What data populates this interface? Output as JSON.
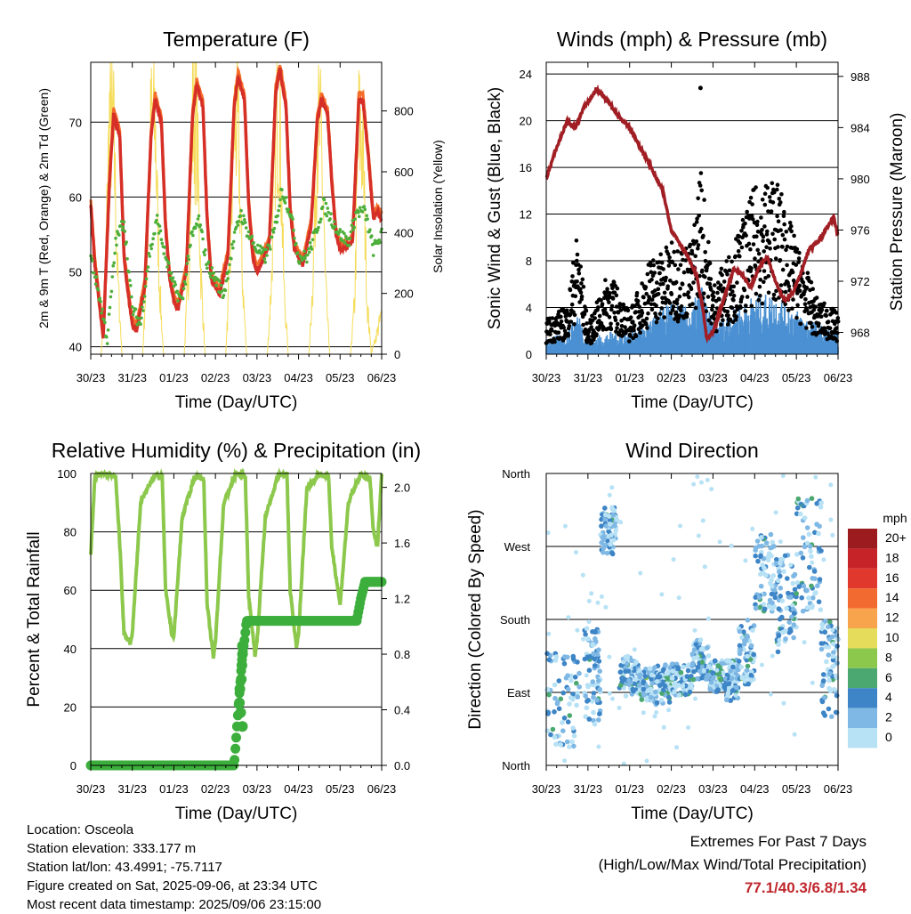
{
  "colors": {
    "temp_2m": "#d62f27",
    "temp_9m": "#f46d2a",
    "dewpoint": "#4daf3a",
    "solar": "#f5dc5a",
    "wind": "#000000",
    "gust": "#4a90d2",
    "pressure": "#a01e24",
    "rh": "#8cc84b",
    "precip": "#3cae3c",
    "extremes_values": "#c0272d"
  },
  "x_ticks": [
    "30/23",
    "31/23",
    "01/23",
    "02/23",
    "03/23",
    "04/23",
    "05/23",
    "06/23"
  ],
  "chart_data": [
    {
      "type": "line",
      "title": "Temperature (F)",
      "xlabel": "Time (Day/UTC)",
      "ylabel": "2m & 9m T (Red, Orange) & 2m Td (Green)",
      "y2label": "Solar Insolation (Yellow)",
      "ylim": [
        39,
        78
      ],
      "y2lim": [
        0,
        960
      ],
      "yticks": [
        40,
        50,
        60,
        70
      ],
      "y2ticks": [
        0,
        200,
        400,
        600,
        800
      ],
      "series": [
        {
          "name": "2m T",
          "x": [
            0,
            0.1,
            0.3,
            0.45,
            0.55,
            0.7,
            0.8,
            0.9,
            1,
            1.1,
            1.3,
            1.45,
            1.55,
            1.7,
            1.8,
            1.9,
            2,
            2.1,
            2.3,
            2.45,
            2.55,
            2.7,
            2.8,
            2.9,
            3,
            3.1,
            3.3,
            3.45,
            3.55,
            3.7,
            3.8,
            3.9,
            4,
            4.1,
            4.3,
            4.45,
            4.55,
            4.7,
            4.8,
            4.9,
            5,
            5.1,
            5.3,
            5.45,
            5.55,
            5.7,
            5.8,
            5.9,
            6,
            6.1,
            6.3,
            6.45,
            6.55,
            6.7,
            6.8,
            6.9,
            7
          ],
          "values": [
            59,
            51,
            41,
            62,
            71,
            68,
            52,
            47,
            43,
            42,
            48,
            68,
            73,
            70,
            56,
            49,
            46,
            45,
            50,
            71,
            75,
            72,
            57,
            49,
            48,
            47,
            52,
            72,
            76,
            73,
            59,
            52,
            50,
            51,
            54,
            74,
            77,
            72,
            58,
            53,
            52,
            51,
            56,
            70,
            73,
            71,
            62,
            55,
            53,
            53,
            54,
            73,
            73,
            64,
            57,
            58,
            57
          ]
        },
        {
          "name": "Td",
          "x": [
            0,
            0.2,
            0.4,
            0.6,
            0.8,
            1,
            1.2,
            1.4,
            1.6,
            1.8,
            2,
            2.2,
            2.4,
            2.6,
            2.8,
            3,
            3.2,
            3.4,
            3.6,
            3.8,
            4,
            4.2,
            4.4,
            4.6,
            4.8,
            5,
            5.2,
            5.4,
            5.6,
            5.8,
            6,
            6.2,
            6.4,
            6.6,
            6.8,
            7
          ],
          "values": [
            52,
            47,
            41,
            54,
            57,
            45,
            43,
            52,
            57,
            52,
            48,
            46,
            54,
            57,
            51,
            49,
            47,
            53,
            58,
            55,
            53,
            52,
            55,
            61,
            58,
            52,
            52,
            55,
            59,
            57,
            55,
            54,
            58,
            58,
            53,
            55
          ]
        },
        {
          "name": "Solar",
          "x": [
            0,
            0.25,
            0.35,
            0.45,
            0.55,
            0.65,
            0.75,
            1,
            1.25,
            1.35,
            1.45,
            1.55,
            1.65,
            1.75,
            2,
            2.25,
            2.35,
            2.45,
            2.55,
            2.65,
            2.75,
            3,
            3.25,
            3.35,
            3.45,
            3.55,
            3.65,
            3.75,
            4,
            4.25,
            4.35,
            4.45,
            4.55,
            4.65,
            4.75,
            5,
            5.25,
            5.35,
            5.45,
            5.55,
            5.65,
            5.75,
            6,
            6.25,
            6.35,
            6.45,
            6.55,
            6.65,
            6.75,
            7
          ],
          "values": [
            0,
            0,
            300,
            900,
            850,
            300,
            0,
            0,
            0,
            350,
            880,
            900,
            280,
            0,
            0,
            0,
            320,
            920,
            870,
            310,
            0,
            0,
            0,
            330,
            900,
            850,
            290,
            0,
            0,
            0,
            280,
            900,
            880,
            250,
            0,
            0,
            0,
            300,
            880,
            820,
            260,
            0,
            0,
            0,
            200,
            870,
            800,
            200,
            0,
            150
          ]
        }
      ]
    },
    {
      "type": "scatter",
      "title": "Winds (mph) & Pressure (mb)",
      "xlabel": "Time (Day/UTC)",
      "ylabel": "Sonic Wind & Gust (Blue, Black)",
      "y2label": "Station Pressure (Maroon)",
      "ylim": [
        0,
        25
      ],
      "y2lim": [
        966.3,
        989.1
      ],
      "yticks": [
        0,
        4,
        8,
        12,
        16,
        20,
        24
      ],
      "y2ticks": [
        968,
        972,
        976,
        980,
        984,
        988
      ],
      "series": [
        {
          "name": "Pressure",
          "x": [
            0,
            0.2,
            0.5,
            0.7,
            0.9,
            1.2,
            1.5,
            1.7,
            2,
            2.5,
            2.8,
            3,
            3.3,
            3.6,
            3.75,
            3.85,
            4,
            4.2,
            4.5,
            4.7,
            4.9,
            5.1,
            5.3,
            5.5,
            5.7,
            5.9,
            6.1,
            6.3,
            6.5,
            6.7,
            6.9,
            7
          ],
          "values": [
            980,
            982,
            984.5,
            984,
            985.5,
            987,
            986,
            985,
            984,
            981,
            979,
            976,
            974.5,
            972.5,
            970,
            967.5,
            968,
            970,
            973,
            972.5,
            971.5,
            973,
            974,
            972,
            970.5,
            971,
            972.5,
            974.5,
            975,
            976,
            977,
            975.5
          ]
        },
        {
          "name": "Wind",
          "x": [
            0,
            0.5,
            0.75,
            1,
            1.5,
            2,
            2.5,
            3,
            3.5,
            3.7,
            4,
            4.5,
            5,
            5.5,
            6,
            6.5,
            7
          ],
          "values": [
            1,
            1.5,
            3,
            1,
            1.5,
            1.5,
            2.5,
            3.5,
            3,
            5,
            2,
            3,
            4,
            4,
            3,
            2,
            1.5
          ]
        },
        {
          "name": "Gust",
          "x": [
            0,
            0.5,
            0.75,
            1,
            1.5,
            2,
            2.5,
            3,
            3.5,
            3.7,
            4,
            4.5,
            5,
            5.5,
            6,
            6.5,
            7
          ],
          "values": [
            2.5,
            3.5,
            9,
            2,
            6,
            3,
            7,
            8,
            8,
            14,
            5,
            8,
            12,
            13,
            8,
            4,
            3
          ]
        }
      ]
    },
    {
      "type": "line",
      "title": "Relative Humidity (%) & Precipitation (in)",
      "xlabel": "Time (Day/UTC)",
      "ylabel": "Percent & Total Rainfall",
      "ylim": [
        0,
        100
      ],
      "y2lim": [
        0,
        2.1
      ],
      "yticks": [
        0,
        20,
        40,
        60,
        80,
        100
      ],
      "y2ticks": [
        0.0,
        0.4,
        0.8,
        1.2,
        1.6,
        2.0
      ],
      "series": [
        {
          "name": "RH",
          "x": [
            0,
            0.1,
            0.3,
            0.6,
            0.72,
            0.8,
            0.95,
            1,
            1.2,
            1.5,
            1.72,
            1.8,
            1.95,
            2,
            2.2,
            2.5,
            2.72,
            2.8,
            2.95,
            3,
            3.2,
            3.5,
            3.72,
            3.8,
            3.95,
            4,
            4.2,
            4.5,
            4.72,
            4.8,
            4.95,
            5,
            5.2,
            5.5,
            5.72,
            5.8,
            5.95,
            6,
            6.2,
            6.5,
            6.72,
            6.8,
            6.9,
            7
          ],
          "values": [
            72,
            99,
            100,
            99,
            70,
            45,
            42,
            45,
            90,
            99,
            99,
            60,
            45,
            44,
            85,
            99,
            98,
            55,
            37,
            42,
            90,
            100,
            99,
            58,
            38,
            42,
            85,
            99,
            100,
            60,
            40,
            45,
            95,
            100,
            99,
            75,
            60,
            55,
            90,
            100,
            98,
            80,
            75,
            100
          ]
        },
        {
          "name": "Precip",
          "x": [
            0,
            3.45,
            3.5,
            3.55,
            3.6,
            3.65,
            3.7,
            3.75,
            3.8,
            6.4,
            6.5,
            6.6,
            7
          ],
          "values": [
            0,
            0,
            0.2,
            0.4,
            0.6,
            0.8,
            0.9,
            1.04,
            1.04,
            1.04,
            1.2,
            1.32,
            1.32
          ]
        }
      ]
    },
    {
      "type": "scatter",
      "title": "Wind Direction",
      "xlabel": "Time (Day/UTC)",
      "ylabel": "Direction (Colored By Speed)",
      "ylim": [
        0,
        360
      ],
      "ytick_labels": [
        "North",
        "East",
        "South",
        "West",
        "North"
      ],
      "legend_title": "mph",
      "legend_labels": [
        "20+",
        "18",
        "16",
        "14",
        "12",
        "10",
        "8",
        "6",
        "4",
        "2",
        "0"
      ],
      "legend_colors": [
        "#9b1b1e",
        "#c62329",
        "#e0382d",
        "#f26a30",
        "#f8a44c",
        "#e6dc5c",
        "#8cc84b",
        "#4ba870",
        "#3d85c6",
        "#7fb8e4",
        "#b7e1f5"
      ]
    }
  ],
  "info": {
    "location": "Location: Osceola",
    "elevation": "Station elevation: 333.177 m",
    "latlon": "Station lat/lon: 43.4991; -75.7117",
    "created": "Figure created on Sat, 2025-09-06, at 23:34 UTC",
    "recent": "Most recent data timestamp: 2025/09/06 23:15:00"
  },
  "extremes": {
    "title": "Extremes For Past 7 Days",
    "subtitle": "(High/Low/Max Wind/Total Precipitation)",
    "values": "77.1/40.3/6.8/1.34"
  }
}
